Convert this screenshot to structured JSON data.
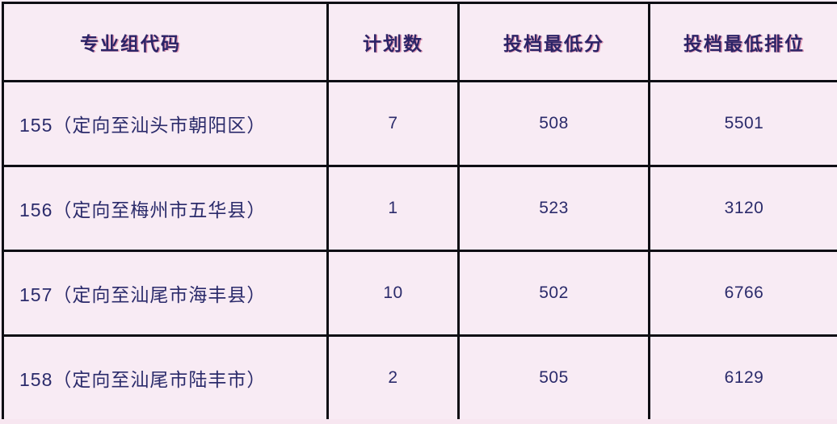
{
  "chart_data": {
    "type": "table",
    "columns": [
      "专业组代码",
      "计划数",
      "投档最低分",
      "投档最低排位"
    ],
    "rows": [
      [
        "155（定向至汕头市朝阳区）",
        "7",
        "508",
        "5501"
      ],
      [
        "156（定向至梅州市五华县）",
        "1",
        "523",
        "3120"
      ],
      [
        "157（定向至汕尾市海丰县）",
        "10",
        "502",
        "6766"
      ],
      [
        "158（定向至汕尾市陆丰市）",
        "2",
        "505",
        "6129"
      ]
    ],
    "layout": {
      "grid": "on",
      "header_position": "top",
      "note": "bottom edge shows sliver of a fifth, cut-off row"
    }
  },
  "colors": {
    "cell_background": "#f8ebf4",
    "grid_line": "#0e0e14",
    "header_text": "#2c2467",
    "body_text": "#2b2b6b",
    "sliver_background": "#f7e6f0"
  }
}
